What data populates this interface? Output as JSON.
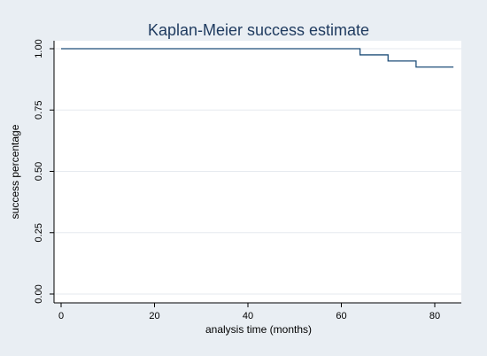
{
  "chart_data": {
    "type": "line",
    "title": "Kaplan-Meier success estimate",
    "xlabel": "analysis time (months)",
    "ylabel": "success percentage",
    "xlim": [
      0,
      85
    ],
    "ylim": [
      0,
      1
    ],
    "x_ticks": [
      0,
      20,
      40,
      60,
      80
    ],
    "x_tick_labels": [
      "0",
      "20",
      "40",
      "60",
      "80"
    ],
    "y_ticks": [
      0,
      0.25,
      0.5,
      0.75,
      1
    ],
    "y_tick_labels": [
      "0.00",
      "0.25",
      "0.50",
      "0.75",
      "1.00"
    ],
    "grid": true,
    "step": true,
    "series": [
      {
        "x": [
          0,
          64,
          70,
          76,
          84
        ],
        "y": [
          1.0,
          0.975,
          0.95,
          0.925,
          0.925
        ]
      }
    ],
    "colors": {
      "frame": "#e9eef3",
      "plot_bg": "#ffffff",
      "grid": "#e5eaef",
      "line": "#1f4e79",
      "title": "#1e3a5f"
    }
  }
}
